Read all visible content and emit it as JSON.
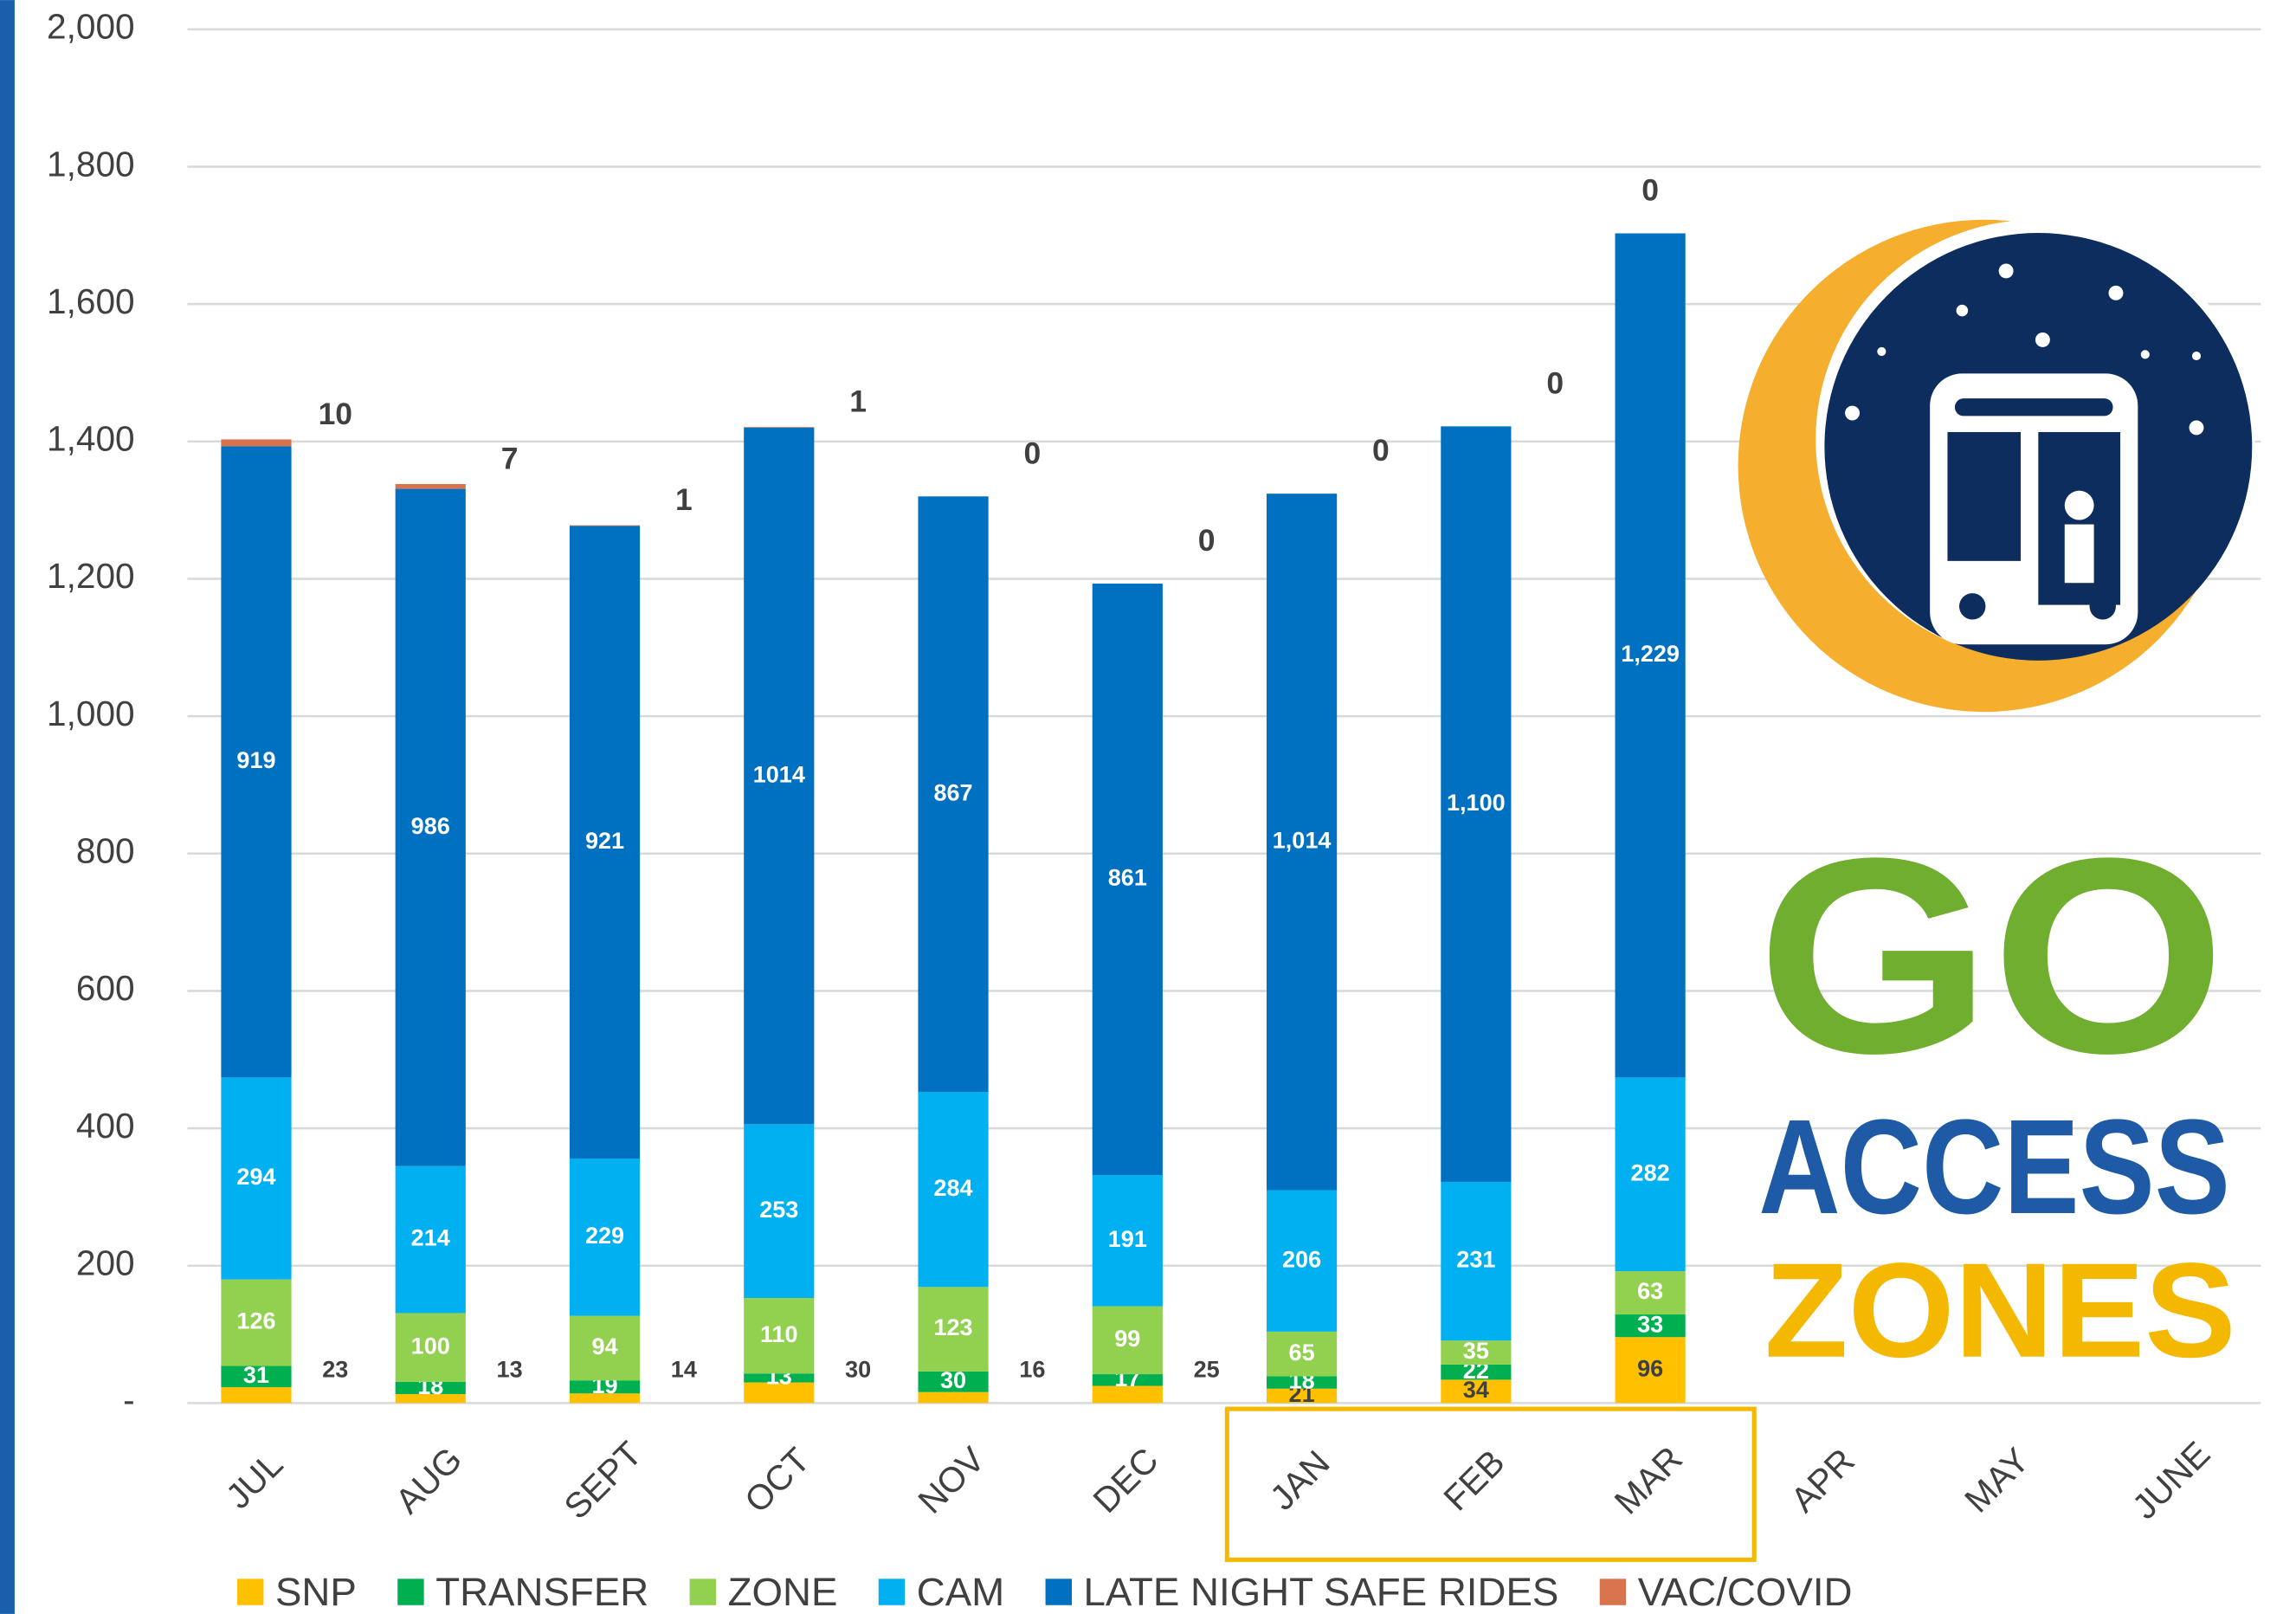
{
  "chart_data": {
    "type": "stacked_bar",
    "categories": [
      "JUL",
      "AUG",
      "SEPT",
      "OCT",
      "NOV",
      "DEC",
      "JAN",
      "FEB",
      "MAR",
      "APR",
      "MAY",
      "JUNE"
    ],
    "series": [
      {
        "name": "SNP",
        "color": "#FFC000",
        "values": [
          23,
          13,
          14,
          30,
          16,
          25,
          21,
          34,
          96,
          null,
          null,
          null
        ]
      },
      {
        "name": "TRANSFER",
        "color": "#00B050",
        "values": [
          31,
          18,
          19,
          13,
          30,
          17,
          18,
          22,
          33,
          null,
          null,
          null
        ]
      },
      {
        "name": "ZONE",
        "color": "#92D050",
        "values": [
          126,
          100,
          94,
          110,
          123,
          99,
          65,
          35,
          63,
          null,
          null,
          null
        ]
      },
      {
        "name": "CAM",
        "color": "#00B0F0",
        "values": [
          294,
          214,
          229,
          253,
          284,
          191,
          206,
          231,
          282,
          null,
          null,
          null
        ]
      },
      {
        "name": "LATE NIGHT SAFE RIDES",
        "color": "#0070C0",
        "values": [
          919,
          986,
          921,
          1014,
          867,
          861,
          1014,
          1100,
          1229,
          null,
          null,
          null
        ],
        "value_labels": [
          "919",
          "986",
          "921",
          "1014",
          "867",
          "861",
          "1,014",
          "1,100",
          "1,229",
          null,
          null,
          null
        ]
      },
      {
        "name": "VAC/COVID",
        "color": "#D9734E",
        "values": [
          10,
          7,
          1,
          1,
          0,
          0,
          0,
          0,
          0,
          null,
          null,
          null
        ]
      }
    ],
    "ylim": [
      0,
      2000
    ],
    "yticks": [
      {
        "value": 0,
        "label": "-"
      },
      200,
      400,
      600,
      800,
      {
        "value": 1000,
        "label": "1,000"
      },
      {
        "value": 1200,
        "label": "1,200"
      },
      {
        "value": 1400,
        "label": "1,400"
      },
      {
        "value": 1600,
        "label": "1,600"
      },
      {
        "value": 1800,
        "label": "1,800"
      },
      {
        "value": 2000,
        "label": "2,000"
      }
    ],
    "grid": true
  },
  "logo": {
    "go": "GO",
    "access": "ACCESS",
    "zones": "ZONES"
  }
}
